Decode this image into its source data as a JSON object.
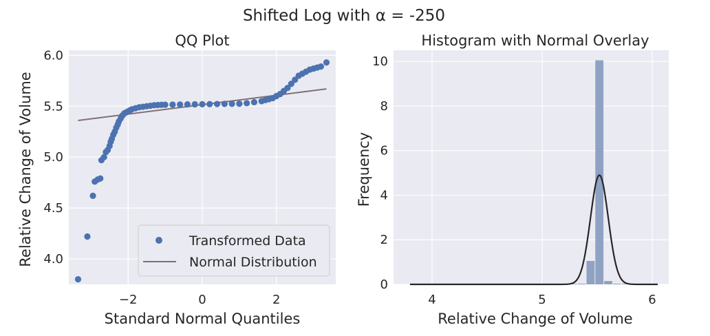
{
  "figure": {
    "title": "Shifted Log with α = -250"
  },
  "colors": {
    "background": "#eaeaf2",
    "grid": "#ffffff",
    "points": "#4c72b0",
    "fit_line": "#7f6f74",
    "hist_bars": "#8fa2c2",
    "kde": "#262626"
  },
  "chart_data": [
    {
      "type": "scatter",
      "title": "QQ Plot",
      "xlabel": "Standard Normal Quantiles",
      "ylabel": "Relative Change of Volume",
      "xlim": [
        -3.6,
        3.6
      ],
      "ylim": [
        3.75,
        6.05
      ],
      "xticks": [
        -2,
        0,
        2
      ],
      "xtick_labels": [
        "−2",
        "0",
        "2"
      ],
      "yticks": [
        4.0,
        4.5,
        5.0,
        5.5,
        6.0
      ],
      "ytick_labels": [
        "4.0",
        "4.5",
        "5.0",
        "5.5",
        "6.0"
      ],
      "grid": true,
      "legend": {
        "placement": "lower-right",
        "entries": [
          "Transformed Data",
          "Normal Distribution"
        ]
      },
      "series": [
        {
          "name": "Transformed Data",
          "kind": "points",
          "x": [
            -3.35,
            -3.1,
            -2.95,
            -2.9,
            -2.82,
            -2.75,
            -2.72,
            -2.65,
            -2.6,
            -2.55,
            -2.5,
            -2.47,
            -2.44,
            -2.4,
            -2.36,
            -2.32,
            -2.28,
            -2.25,
            -2.2,
            -2.15,
            -2.1,
            -2.05,
            -2.0,
            -1.95,
            -1.9,
            -1.8,
            -1.7,
            -1.6,
            -1.5,
            -1.4,
            -1.3,
            -1.2,
            -1.1,
            -1.0,
            -0.8,
            -0.6,
            -0.4,
            -0.2,
            0.0,
            0.2,
            0.4,
            0.6,
            0.8,
            1.0,
            1.2,
            1.4,
            1.6,
            1.7,
            1.8,
            1.9,
            2.0,
            2.1,
            2.2,
            2.3,
            2.4,
            2.5,
            2.6,
            2.7,
            2.8,
            2.9,
            3.0,
            3.1,
            3.2,
            3.35
          ],
          "y": [
            3.8,
            4.22,
            4.62,
            4.76,
            4.78,
            4.79,
            4.97,
            5.0,
            5.05,
            5.07,
            5.11,
            5.15,
            5.18,
            5.22,
            5.25,
            5.29,
            5.32,
            5.35,
            5.38,
            5.41,
            5.43,
            5.44,
            5.45,
            5.46,
            5.47,
            5.48,
            5.49,
            5.495,
            5.5,
            5.505,
            5.51,
            5.512,
            5.514,
            5.515,
            5.516,
            5.517,
            5.518,
            5.519,
            5.52,
            5.521,
            5.522,
            5.523,
            5.524,
            5.525,
            5.53,
            5.54,
            5.55,
            5.56,
            5.57,
            5.58,
            5.6,
            5.62,
            5.65,
            5.68,
            5.72,
            5.76,
            5.8,
            5.82,
            5.84,
            5.86,
            5.87,
            5.88,
            5.89,
            5.93
          ]
        },
        {
          "name": "Normal Distribution",
          "kind": "line",
          "x": [
            -3.35,
            3.35
          ],
          "y": [
            5.36,
            5.67
          ]
        }
      ]
    },
    {
      "type": "bar",
      "title": "Histogram with Normal Overlay",
      "xlabel": "Relative Change of Volume",
      "ylabel": "Frequency",
      "xlim": [
        3.65,
        6.15
      ],
      "ylim": [
        0,
        10.5
      ],
      "xticks": [
        4,
        5,
        6
      ],
      "xtick_labels": [
        "4",
        "5",
        "6"
      ],
      "yticks": [
        0,
        2,
        4,
        6,
        8,
        10
      ],
      "ytick_labels": [
        "0",
        "2",
        "4",
        "6",
        "8",
        "10"
      ],
      "grid": true,
      "bins": {
        "edges": [
          3.8,
          3.88,
          3.96,
          4.04,
          4.12,
          4.2,
          4.28,
          4.36,
          4.44,
          4.52,
          4.6,
          4.68,
          4.76,
          4.84,
          4.92,
          5.0,
          5.08,
          5.16,
          5.24,
          5.32,
          5.4,
          5.48,
          5.56,
          5.64,
          5.72,
          5.8,
          5.88,
          5.96,
          6.04
        ],
        "values": [
          0.02,
          0,
          0,
          0,
          0.02,
          0,
          0,
          0,
          0,
          0.02,
          0,
          0.02,
          0.02,
          0,
          0.02,
          0.02,
          0.02,
          0.02,
          0.02,
          0.02,
          1.05,
          10.05,
          0.15,
          0.02,
          0.02,
          0.02,
          0.02,
          0.02
        ]
      },
      "kde": {
        "peak_x": 5.52,
        "peak_y": 4.9,
        "std": 0.081,
        "range": [
          3.8,
          6.05
        ]
      }
    }
  ]
}
